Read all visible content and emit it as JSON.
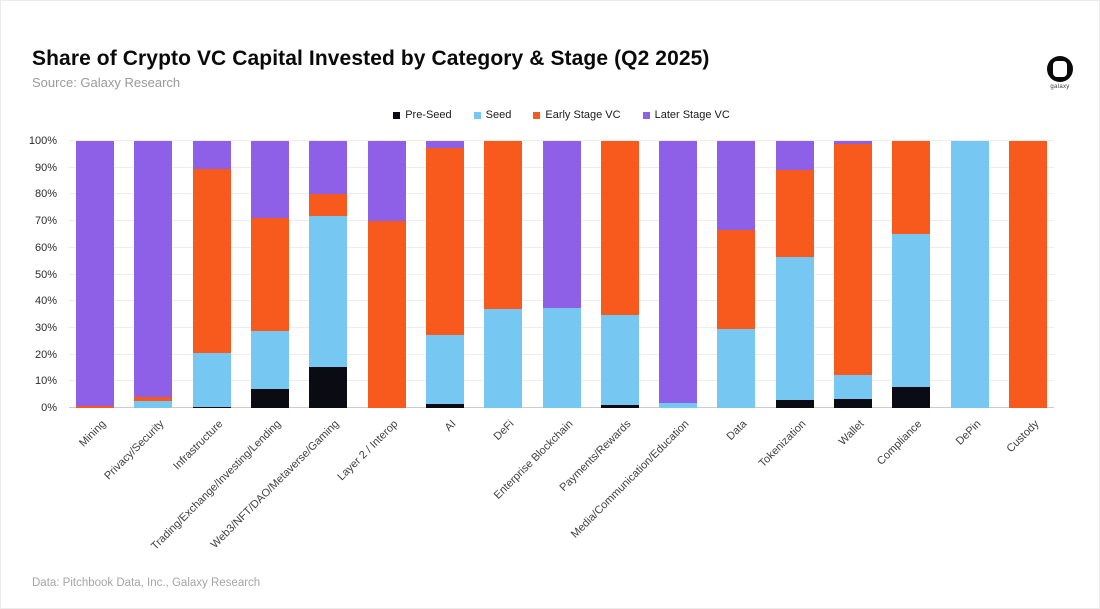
{
  "header": {
    "title": "Share of Crypto VC Capital Invested by Category & Stage (Q2 2025)",
    "source": "Source: Galaxy Research"
  },
  "logo": {
    "label": "galaxy"
  },
  "footer": {
    "text": "Data: Pitchbook Data, Inc., Galaxy Research"
  },
  "colors": {
    "pre_seed": "#0b0b14",
    "seed": "#76c7f2",
    "early_stage": "#f75a1c",
    "later_stage": "#8e60e7"
  },
  "chart_data": {
    "type": "bar",
    "stacked": true,
    "units": "percent",
    "title": "Share of Crypto VC Capital Invested by Category & Stage (Q2 2025)",
    "xlabel": "",
    "ylabel": "",
    "ylim": [
      0,
      100
    ],
    "grid": true,
    "legend_position": "top",
    "y_ticks": [
      "0%",
      "10%",
      "20%",
      "30%",
      "40%",
      "50%",
      "60%",
      "70%",
      "80%",
      "90%",
      "100%"
    ],
    "categories": [
      "Mining",
      "Privacy/Security",
      "Infrastructure",
      "Trading/Exchange/Investing/Lending",
      "Web3/NFT/DAO/Metaverse/Gaming",
      "Layer 2 / Interop",
      "AI",
      "DeFi",
      "Enterprise Blockchain",
      "Payments/Rewards",
      "Media/Communication/Education",
      "Data",
      "Tokenization",
      "Wallet",
      "Compliance",
      "DePin",
      "Custody"
    ],
    "series": [
      {
        "name": "Pre-Seed",
        "color": "#0b0b14",
        "values": [
          0,
          0,
          0.5,
          7,
          15.5,
          0,
          1.5,
          0,
          0,
          1,
          0,
          0,
          3,
          3.5,
          8,
          0,
          0
        ]
      },
      {
        "name": "Seed",
        "color": "#76c7f2",
        "values": [
          0,
          2.5,
          20,
          22,
          56.5,
          0,
          26,
          37,
          37.5,
          34,
          2,
          29.5,
          53.5,
          9,
          57,
          100,
          0
        ]
      },
      {
        "name": "Early Stage VC",
        "color": "#f75a1c",
        "values": [
          0.7,
          1.5,
          69,
          42,
          8,
          70,
          70,
          63,
          0,
          65,
          0,
          37,
          32.5,
          86.5,
          35,
          0,
          100
        ]
      },
      {
        "name": "Later Stage VC",
        "color": "#8e60e7",
        "values": [
          99.3,
          96,
          10.5,
          29,
          20,
          30,
          2.5,
          0,
          62.5,
          0,
          98,
          33.5,
          11,
          1,
          0,
          0,
          0
        ]
      }
    ]
  }
}
